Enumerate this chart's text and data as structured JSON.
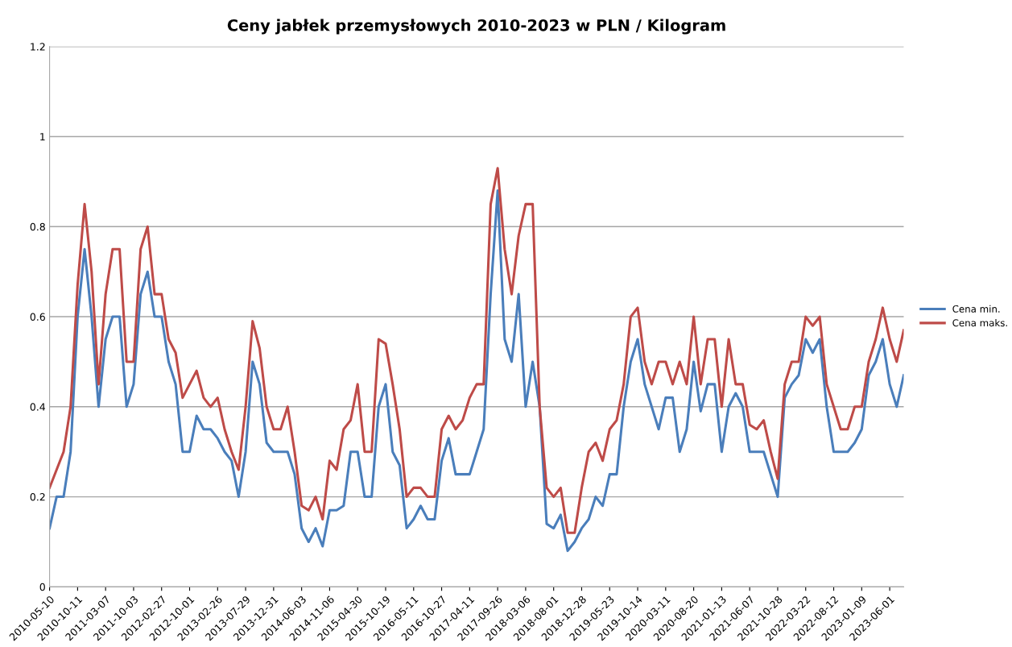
{
  "chart_data": {
    "type": "line",
    "title": "Ceny jabłek przemysłowych 2010-2023 w PLN / Kilogram",
    "categories": [
      "2010-05-10",
      null,
      null,
      null,
      "2010-10-11",
      null,
      null,
      null,
      "2011-03-07",
      null,
      null,
      null,
      "2011-10-03",
      null,
      null,
      null,
      "2012-02-27",
      null,
      null,
      null,
      "2012-10-01",
      null,
      null,
      null,
      "2013-02-26",
      null,
      null,
      null,
      "2013-07-29",
      null,
      null,
      null,
      "2013-12-31",
      null,
      null,
      null,
      "2014-06-03",
      null,
      null,
      null,
      "2014-11-06",
      null,
      null,
      null,
      "2015-04-30",
      null,
      null,
      null,
      "2015-10-19",
      null,
      null,
      null,
      "2016-05-11",
      null,
      null,
      null,
      "2016-10-27",
      null,
      null,
      null,
      "2017-04-11",
      null,
      null,
      null,
      "2017-09-26",
      null,
      null,
      null,
      "2018-03-06",
      null,
      null,
      null,
      "2018-08-01",
      null,
      null,
      null,
      "2018-12-28",
      null,
      null,
      null,
      "2019-05-23",
      null,
      null,
      null,
      "2019-10-14",
      null,
      null,
      null,
      "2020-03-11",
      null,
      null,
      null,
      "2020-08-20",
      null,
      null,
      null,
      "2021-01-13",
      null,
      null,
      null,
      "2021-06-07",
      null,
      null,
      null,
      "2021-10-28",
      null,
      null,
      null,
      "2022-03-22",
      null,
      null,
      null,
      "2022-08-12",
      null,
      null,
      null,
      "2023-01-09",
      null,
      null,
      null,
      "2023-06-01",
      null,
      null
    ],
    "series": [
      {
        "name": "Cena min.",
        "color": "#4a7ebb",
        "values": [
          0.13,
          0.2,
          0.2,
          0.3,
          0.6,
          0.75,
          0.6,
          0.4,
          0.55,
          0.6,
          0.6,
          0.4,
          0.45,
          0.65,
          0.7,
          0.6,
          0.6,
          0.5,
          0.45,
          0.3,
          0.3,
          0.38,
          0.35,
          0.35,
          0.33,
          0.3,
          0.28,
          0.2,
          0.3,
          0.5,
          0.45,
          0.32,
          0.3,
          0.3,
          0.3,
          0.25,
          0.13,
          0.1,
          0.13,
          0.09,
          0.17,
          0.17,
          0.18,
          0.3,
          0.3,
          0.2,
          0.2,
          0.4,
          0.45,
          0.3,
          0.27,
          0.13,
          0.15,
          0.18,
          0.15,
          0.15,
          0.28,
          0.33,
          0.25,
          0.25,
          0.25,
          0.3,
          0.35,
          0.65,
          0.88,
          0.55,
          0.5,
          0.65,
          0.4,
          0.5,
          0.4,
          0.14,
          0.13,
          0.16,
          0.08,
          0.1,
          0.13,
          0.15,
          0.2,
          0.18,
          0.25,
          0.25,
          0.4,
          0.5,
          0.55,
          0.45,
          0.4,
          0.35,
          0.42,
          0.42,
          0.3,
          0.35,
          0.5,
          0.39,
          0.45,
          0.45,
          0.3,
          0.4,
          0.43,
          0.4,
          0.3,
          0.3,
          0.3,
          0.25,
          0.2,
          0.42,
          0.45,
          0.47,
          0.55,
          0.52,
          0.55,
          0.4,
          0.3,
          0.3,
          0.3,
          0.32,
          0.35,
          0.47,
          0.5,
          0.55,
          0.45,
          0.4,
          0.47
        ]
      },
      {
        "name": "Cena maks.",
        "color": "#be4b48",
        "values": [
          0.22,
          0.26,
          0.3,
          0.4,
          0.67,
          0.85,
          0.7,
          0.45,
          0.65,
          0.75,
          0.75,
          0.5,
          0.5,
          0.75,
          0.8,
          0.65,
          0.65,
          0.55,
          0.52,
          0.42,
          0.45,
          0.48,
          0.42,
          0.4,
          0.42,
          0.35,
          0.3,
          0.26,
          0.4,
          0.59,
          0.53,
          0.4,
          0.35,
          0.35,
          0.4,
          0.3,
          0.18,
          0.17,
          0.2,
          0.15,
          0.28,
          0.26,
          0.35,
          0.37,
          0.45,
          0.3,
          0.3,
          0.55,
          0.54,
          0.45,
          0.35,
          0.2,
          0.22,
          0.22,
          0.2,
          0.2,
          0.35,
          0.38,
          0.35,
          0.37,
          0.42,
          0.45,
          0.45,
          0.85,
          0.93,
          0.75,
          0.65,
          0.78,
          0.85,
          0.85,
          0.4,
          0.22,
          0.2,
          0.22,
          0.12,
          0.12,
          0.22,
          0.3,
          0.32,
          0.28,
          0.35,
          0.37,
          0.45,
          0.6,
          0.62,
          0.5,
          0.45,
          0.5,
          0.5,
          0.45,
          0.5,
          0.45,
          0.6,
          0.45,
          0.55,
          0.55,
          0.4,
          0.55,
          0.45,
          0.45,
          0.36,
          0.35,
          0.37,
          0.3,
          0.24,
          0.45,
          0.5,
          0.5,
          0.6,
          0.58,
          0.6,
          0.45,
          0.4,
          0.35,
          0.35,
          0.4,
          0.4,
          0.5,
          0.55,
          0.62,
          0.55,
          0.5,
          0.57
        ]
      }
    ],
    "ylim": [
      0,
      1.2
    ],
    "yticks": [
      0,
      0.2,
      0.4,
      0.6,
      0.8,
      1,
      1.2
    ],
    "grid": "y",
    "legend": "right",
    "marker": "none",
    "line_style": "solid"
  }
}
